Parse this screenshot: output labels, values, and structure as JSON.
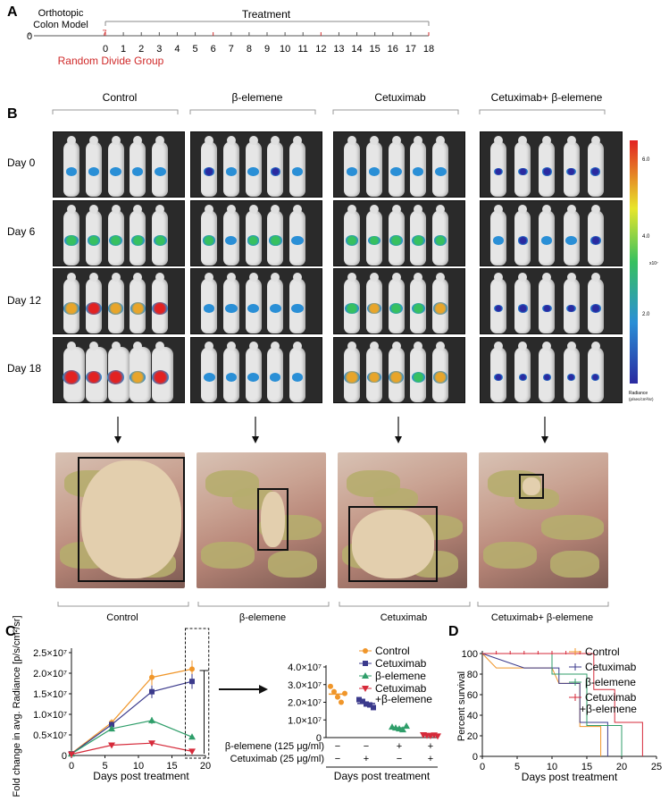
{
  "panels": {
    "a": "A",
    "b": "B",
    "c": "C",
    "d": "D"
  },
  "timeline": {
    "model_label_line1": "Orthotopic",
    "model_label_line2": "Colon Model",
    "start_day": "0",
    "seven_label": "7",
    "treatment_label": "Treatment",
    "random_label": "Random Divide Group",
    "days": [
      "0",
      "1",
      "2",
      "3",
      "4",
      "5",
      "6",
      "7",
      "8",
      "9",
      "10",
      "11",
      "12",
      "13",
      "14",
      "15",
      "16",
      "17",
      "18"
    ]
  },
  "imaging": {
    "groups": [
      "Control",
      "β-elemene",
      "Cetuximab",
      "Cetuximab+ β-elemene"
    ],
    "day_labels": [
      "Day 0",
      "Day 6",
      "Day 12",
      "Day 18"
    ],
    "colorbar_ticks": [
      "6.0",
      "4.0",
      "2.0"
    ],
    "colorbar_exp": "x10⁷",
    "colorbar_title": "Radiance",
    "colorbar_unit": "(p/sec/cm²/sr)"
  },
  "photos": {
    "groups": [
      "Control",
      "β-elemene",
      "Cetuximab",
      "Cetuximab+ β-elemene"
    ]
  },
  "colors": {
    "control": "#f0962a",
    "cetuximab": "#3b3a8c",
    "belemene": "#2f9e6a",
    "combo": "#d62a3a"
  },
  "chart_data": [
    {
      "type": "line",
      "title": "",
      "xlabel": "Days post treatment",
      "ylabel": "Fold change in avg. Radiance [p/s/cm²/sr]",
      "xlim": [
        0,
        20
      ],
      "ylim": [
        0,
        25000000
      ],
      "xticks": [
        "0",
        "5",
        "10",
        "15",
        "20"
      ],
      "yticks": [
        "0",
        "0.5×10⁷",
        "1.0×10⁷",
        "1.5×10⁷",
        "2.0×10⁷",
        "2.5×10⁷"
      ],
      "x": [
        0,
        6,
        12,
        18
      ],
      "series": [
        {
          "name": "Control",
          "values": [
            500000,
            8000000,
            19000000,
            21000000
          ]
        },
        {
          "name": "Cetuximab",
          "values": [
            400000,
            7500000,
            15500000,
            18000000
          ]
        },
        {
          "name": "β-elemene",
          "values": [
            400000,
            6500000,
            8500000,
            4500000
          ]
        },
        {
          "name": "Cetuximab +β-elemene",
          "values": [
            300000,
            2500000,
            3000000,
            1000000
          ]
        }
      ]
    },
    {
      "type": "scatter",
      "xlabel": "Days post treatment",
      "ylim": [
        0,
        40000000
      ],
      "yticks": [
        "0",
        "1.0×10⁷",
        "2.0×10⁷",
        "3.0×10⁷",
        "4.0×10⁷"
      ],
      "row_labels": [
        "β-elemene (125 μg/ml)",
        "Cetuximab (25 μg/ml)"
      ],
      "row_signs": [
        [
          "−",
          "−",
          "+",
          "+"
        ],
        [
          "−",
          "+",
          "−",
          "+"
        ]
      ],
      "legend": [
        "Control",
        "Cetuximab",
        "β-elemene",
        "Cetuximab",
        "+β-elemene"
      ],
      "series": [
        {
          "name": "Control",
          "values": [
            29000000,
            26000000,
            23000000,
            20000000,
            25000000
          ]
        },
        {
          "name": "Cetuximab",
          "values": [
            21500000,
            20500000,
            19000000,
            18500000,
            17000000
          ]
        },
        {
          "name": "β-elemene",
          "values": [
            6000000,
            5500000,
            5000000,
            4500000,
            6500000
          ]
        },
        {
          "name": "Cetuximab +β-elemene",
          "values": [
            1500000,
            1200000,
            1000000,
            1400000,
            800000
          ]
        }
      ]
    },
    {
      "type": "line",
      "xlabel": "Days post treatment",
      "ylabel": "Percent survival",
      "xlim": [
        0,
        25
      ],
      "ylim": [
        0,
        100
      ],
      "xticks": [
        "0",
        "5",
        "10",
        "15",
        "20",
        "25"
      ],
      "yticks": [
        "0",
        "20",
        "40",
        "60",
        "80",
        "100"
      ],
      "legend": [
        "Control",
        "Cetuximab",
        "β-elemene",
        "Cetuximab",
        "+β-elemene"
      ],
      "series": [
        {
          "name": "Control",
          "steps": [
            [
              0,
              100
            ],
            [
              2,
              86
            ],
            [
              10,
              86
            ],
            [
              11,
              71
            ],
            [
              14,
              71
            ],
            [
              14,
              29
            ],
            [
              17,
              29
            ],
            [
              17,
              0
            ]
          ]
        },
        {
          "name": "Cetuximab",
          "steps": [
            [
              0,
              100
            ],
            [
              6,
              86
            ],
            [
              11,
              86
            ],
            [
              11,
              71
            ],
            [
              14,
              71
            ],
            [
              14,
              33
            ],
            [
              18,
              33
            ],
            [
              18,
              0
            ]
          ]
        },
        {
          "name": "β-elemene",
          "steps": [
            [
              0,
              100
            ],
            [
              10,
              100
            ],
            [
              10,
              80
            ],
            [
              15,
              80
            ],
            [
              15,
              30
            ],
            [
              20,
              30
            ],
            [
              20,
              0
            ]
          ]
        },
        {
          "name": "Cetuximab +β-elemene",
          "steps": [
            [
              0,
              100
            ],
            [
              16,
              100
            ],
            [
              16,
              65
            ],
            [
              19,
              65
            ],
            [
              19,
              33
            ],
            [
              23,
              33
            ],
            [
              23,
              0
            ]
          ]
        }
      ]
    }
  ]
}
